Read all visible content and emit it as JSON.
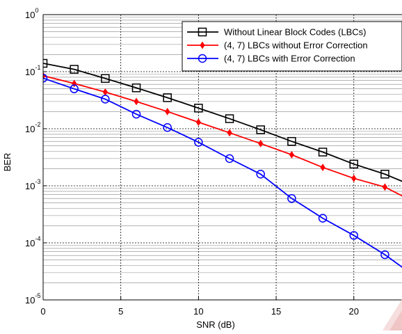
{
  "chart_data": {
    "type": "line",
    "title": "",
    "xlabel": "SNR (dB)",
    "ylabel": "BER",
    "xlim": [
      0,
      23.1
    ],
    "ylim": [
      1e-05,
      1
    ],
    "yscale": "log",
    "grid": true,
    "legend_position": "top-right",
    "x_ticks": [
      {
        "value": 0,
        "label": "0"
      },
      {
        "value": 5,
        "label": "5"
      },
      {
        "value": 10,
        "label": "10"
      },
      {
        "value": 15,
        "label": "15"
      },
      {
        "value": 20,
        "label": "20"
      }
    ],
    "y_ticks": [
      {
        "value": 1,
        "base": "10",
        "exp": "0"
      },
      {
        "value": 0.1,
        "base": "10",
        "exp": "-1"
      },
      {
        "value": 0.01,
        "base": "10",
        "exp": "-2"
      },
      {
        "value": 0.001,
        "base": "10",
        "exp": "-3"
      },
      {
        "value": 0.0001,
        "base": "10",
        "exp": "-4"
      },
      {
        "value": 1e-05,
        "base": "10",
        "exp": "-5"
      }
    ],
    "series": [
      {
        "name": "Without Linear Block Codes (LBCs)",
        "color": "#000000",
        "marker": "square",
        "x": [
          0,
          2,
          4,
          6,
          8,
          10,
          12,
          14,
          16,
          18,
          20,
          22,
          24
        ],
        "y": [
          0.14,
          0.11,
          0.076,
          0.052,
          0.035,
          0.023,
          0.015,
          0.0096,
          0.006,
          0.0039,
          0.0024,
          0.0016,
          0.00095
        ]
      },
      {
        "name": "(4, 7) LBCs without Error Correction",
        "color": "#ff0000",
        "marker": "diamond",
        "x": [
          0,
          2,
          4,
          6,
          8,
          10,
          12,
          14,
          16,
          18,
          20,
          22,
          24
        ],
        "y": [
          0.085,
          0.062,
          0.044,
          0.03,
          0.02,
          0.013,
          0.0085,
          0.0055,
          0.0035,
          0.0021,
          0.00135,
          0.00095,
          0.0005
        ]
      },
      {
        "name": "(4, 7) LBCs with Error Correction",
        "color": "#0000ff",
        "marker": "circle",
        "x": [
          0,
          2,
          4,
          6,
          8,
          10,
          12,
          14,
          16,
          18,
          20,
          22,
          24
        ],
        "y": [
          0.077,
          0.05,
          0.033,
          0.018,
          0.0105,
          0.0058,
          0.003,
          0.0016,
          0.0006,
          0.00027,
          0.000135,
          6.2e-05,
          2.5e-05
        ]
      }
    ]
  }
}
